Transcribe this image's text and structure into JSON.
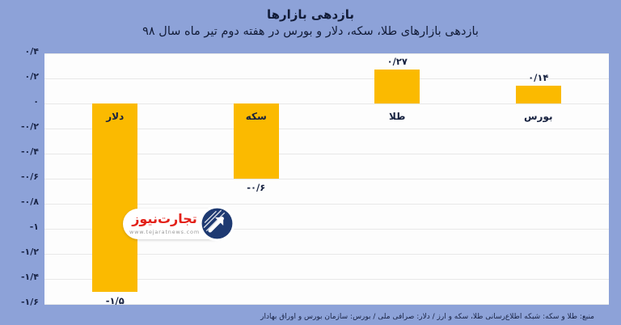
{
  "chart_data": {
    "type": "bar",
    "title": "بازدهی بازارها",
    "subtitle": "بازدهی بازارهای طلا، سکه، دلار و بورس در هفته دوم تیر ماه سال ۹۸",
    "categories": [
      "دلار",
      "سکه",
      "طلا",
      "بورس"
    ],
    "values": [
      -1.5,
      -0.6,
      0.27,
      0.14
    ],
    "value_labels": [
      "-۱/۵",
      "-۰/۶",
      "۰/۲۷",
      "۰/۱۴"
    ],
    "ylim": [
      -1.6,
      0.4
    ],
    "ytick_step": 0.2,
    "ytick_labels": [
      "۰/۴",
      "۰/۲",
      "۰",
      "-۰/۲",
      "-۰/۴",
      "-۰/۶",
      "-۰/۸",
      "-۱",
      "-۱/۲",
      "-۱/۴",
      "-۱/۶"
    ],
    "grid": true,
    "legend": false,
    "bar_color": "#FBBA00",
    "plot_bg": "#FDFDFD",
    "page_bg": "#8DA2D8",
    "gridline_color": "#e8e8e8"
  },
  "watermark": {
    "brand": "تجارت‌نیوز",
    "url": "www.tejaratnews.com",
    "brand_color": "#E32119",
    "emblem_color": "#1E3A72"
  },
  "footer": {
    "source": "منبع: طلا و سکه: شبکه اطلاع‌رسانی طلا، سکه و ارز / دلار: صرافی ملی / بورس: سازمان بورس و اوراق بهادار"
  }
}
